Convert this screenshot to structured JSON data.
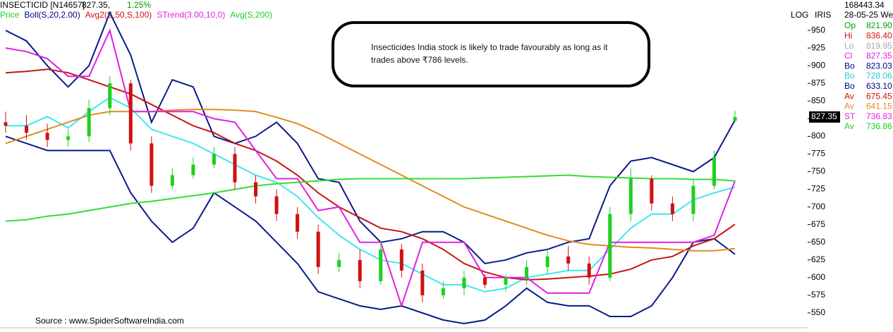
{
  "chart_data": {
    "type": "candlestick",
    "title": "INSECTICID [N14657]",
    "last": "827.35,",
    "change": "1.25%",
    "price_label": "Price",
    "up_color": "#1fcf1f",
    "down_color": "#d01010",
    "scale_labels": [
      "LOG",
      "IRIS"
    ],
    "price_tag": 827.35,
    "annotation": "Insecticides India stock is likely to trade favourably as long as it trades above ₹786 levels.",
    "source": "Source : www.SpiderSoftwareIndia.com",
    "ylim": [
      529,
      993
    ],
    "yticks": [
      550,
      575,
      600,
      625,
      650,
      675,
      700,
      725,
      750,
      775,
      800,
      825,
      850,
      875,
      900,
      925,
      950
    ],
    "categories": [
      null,
      null,
      null,
      null,
      null,
      null,
      null,
      null,
      null,
      null,
      null,
      null,
      null,
      null,
      null,
      null,
      null,
      null,
      null,
      null,
      null,
      null,
      null,
      null,
      null,
      null,
      null,
      null,
      null,
      null,
      null,
      null,
      null,
      null,
      null,
      null
    ],
    "open": [
      820,
      815,
      805,
      795,
      800,
      840,
      875,
      790,
      730,
      745,
      760,
      775,
      735,
      715,
      690,
      665,
      615,
      625,
      595,
      640,
      610,
      575,
      585,
      600,
      590,
      600,
      615,
      630,
      620,
      600,
      690,
      740,
      705,
      690,
      730,
      821.9
    ],
    "high": [
      835,
      830,
      818,
      810,
      852,
      885,
      880,
      800,
      755,
      770,
      785,
      785,
      745,
      725,
      700,
      675,
      635,
      640,
      650,
      648,
      620,
      595,
      610,
      605,
      605,
      625,
      640,
      645,
      630,
      700,
      755,
      745,
      715,
      740,
      780,
      836.4
    ],
    "low": [
      805,
      795,
      785,
      785,
      792,
      830,
      780,
      720,
      725,
      740,
      755,
      725,
      705,
      680,
      655,
      605,
      608,
      585,
      590,
      600,
      565,
      570,
      575,
      585,
      580,
      590,
      605,
      610,
      590,
      595,
      680,
      695,
      680,
      680,
      725,
      819.95
    ],
    "close": [
      815,
      805,
      795,
      800,
      840,
      875,
      790,
      730,
      745,
      760,
      775,
      735,
      715,
      690,
      665,
      615,
      625,
      595,
      640,
      610,
      575,
      585,
      600,
      590,
      600,
      615,
      630,
      620,
      600,
      690,
      740,
      705,
      690,
      730,
      770,
      827.35
    ],
    "indicators": [
      {
        "name": "Boll(S,20,2.00)",
        "color": "#00008b",
        "lines": [
          {
            "color": "#0a1a8a",
            "values": [
              950,
              935,
              900,
              870,
              900,
              975,
              915,
              820,
              880,
              870,
              800,
              790,
              800,
              820,
              790,
              740,
              735,
              680,
              650,
              655,
              665,
              665,
              650,
              620,
              625,
              635,
              640,
              650,
              655,
              730,
              765,
              770,
              760,
              750,
              770,
              823.03
            ]
          },
          {
            "color": "#3fe6ee",
            "values": [
              815,
              815,
              828,
              812,
              835,
              855,
              840,
              810,
              800,
              790,
              775,
              760,
              745,
              735,
              715,
              685,
              660,
              640,
              625,
              620,
              605,
              590,
              590,
              580,
              585,
              600,
              605,
              610,
              610,
              640,
              670,
              690,
              690,
              710,
              720,
              728.06
            ]
          },
          {
            "color": "#0a1a8a",
            "values": [
              800,
              790,
              780,
              780,
              780,
              780,
              720,
              680,
              650,
              670,
              720,
              700,
              680,
              650,
              620,
              580,
              570,
              560,
              555,
              560,
              550,
              540,
              535,
              540,
              560,
              585,
              565,
              560,
              560,
              545,
              545,
              560,
              600,
              650,
              655,
              633.1
            ]
          }
        ]
      },
      {
        "name": "Avg2(S,50,S,100)",
        "color": "#d01010",
        "lines": [
          {
            "color": "#c81414",
            "values": [
              890,
              892,
              895,
              890,
              880,
              870,
              860,
              845,
              830,
              815,
              805,
              790,
              780,
              765,
              745,
              720,
              700,
              685,
              670,
              665,
              655,
              640,
              620,
              608,
              600,
              597,
              598,
              600,
              602,
              605,
              612,
              625,
              630,
              645,
              655,
              675.45
            ]
          },
          {
            "color": "#e08a1e",
            "values": [
              790,
              800,
              810,
              820,
              830,
              835,
              835,
              835,
              837,
              838,
              838,
              837,
              835,
              827,
              818,
              805,
              790,
              775,
              760,
              745,
              730,
              715,
              700,
              690,
              680,
              670,
              660,
              652,
              647,
              645,
              643,
              642,
              640,
              638,
              638,
              641.15
            ]
          }
        ]
      },
      {
        "name": "STrend(3.00,10,0)",
        "color": "#e020e0",
        "lines": [
          {
            "color": "#e020e0",
            "values": [
              925,
              920,
              910,
              885,
              885,
              950,
              835,
              835,
              835,
              835,
              825,
              820,
              780,
              740,
              740,
              695,
              700,
              650,
              650,
              560,
              650,
              650,
              650,
              600,
              600,
              600,
              578,
              578,
              578,
              650,
              650,
              650,
              650,
              650,
              660,
              736.83
            ]
          }
        ]
      },
      {
        "name": "Avg(S,200)",
        "color": "#22cc22",
        "lines": [
          {
            "color": "#33dd33",
            "values": [
              680,
              682,
              687,
              690,
              695,
              700,
              705,
              708,
              712,
              716,
              720,
              725,
              730,
              733,
              735,
              737,
              739,
              740,
              740,
              740,
              740,
              740,
              740,
              741,
              742,
              743,
              744,
              745,
              743,
              742,
              741,
              740,
              740,
              739,
              739,
              736.86
            ]
          }
        ]
      }
    ],
    "info": {
      "volume": "168443.34",
      "date": "28-05-25 We",
      "rows": [
        {
          "label": "Op",
          "value": "821.90",
          "color": "#00a000"
        },
        {
          "label": "Hi",
          "value": "836.40",
          "color": "#d01010"
        },
        {
          "label": "Lo",
          "value": "819.95",
          "color": "#a8a8a8"
        },
        {
          "label": "Cl",
          "value": "827.35",
          "color": "#e020e0"
        },
        {
          "label": "Bo",
          "value": "823.03",
          "color": "#00008b"
        },
        {
          "label": "Bo",
          "value": "728.06",
          "color": "#20c8d8"
        },
        {
          "label": "Bo",
          "value": "633.10",
          "color": "#00008b"
        },
        {
          "label": "Av",
          "value": "675.45",
          "color": "#d01010"
        },
        {
          "label": "Av",
          "value": "641.15",
          "color": "#e08a1e"
        },
        {
          "label": "ST",
          "value": "736.83",
          "color": "#e020e0"
        },
        {
          "label": "Av",
          "value": "736.86",
          "color": "#22cc22"
        }
      ]
    }
  }
}
